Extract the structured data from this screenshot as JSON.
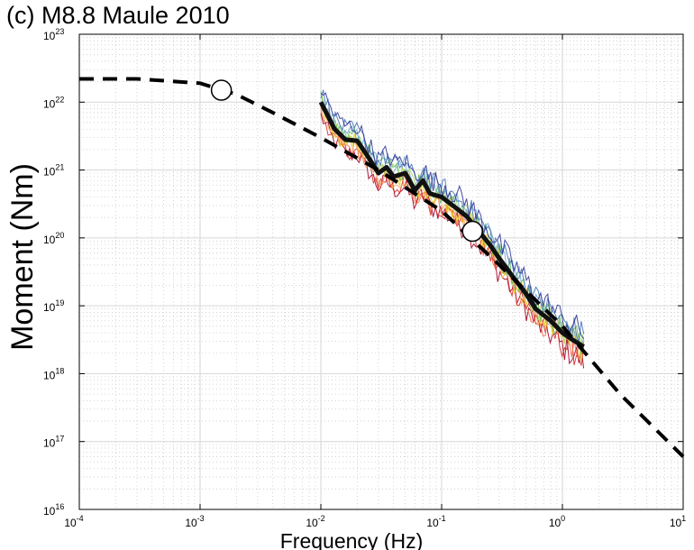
{
  "chart_data": {
    "type": "line",
    "title": "(c) M8.8 Maule 2010",
    "xlabel": "Frequency (Hz)",
    "ylabel": "Moment (Nm)",
    "x_scale": "log",
    "y_scale": "log",
    "xlim": [
      0.0001,
      10
    ],
    "ylim": [
      1e+16,
      1e+23
    ],
    "grid": "major and minor (dotted)",
    "x_ticks": [
      {
        "base": "10",
        "exp": "-4"
      },
      {
        "base": "10",
        "exp": "-3"
      },
      {
        "base": "10",
        "exp": "-2"
      },
      {
        "base": "10",
        "exp": "-1"
      },
      {
        "base": "10",
        "exp": "0"
      },
      {
        "base": "10",
        "exp": "1"
      }
    ],
    "y_ticks": [
      {
        "base": "10",
        "exp": "16"
      },
      {
        "base": "10",
        "exp": "17"
      },
      {
        "base": "10",
        "exp": "18"
      },
      {
        "base": "10",
        "exp": "19"
      },
      {
        "base": "10",
        "exp": "20"
      },
      {
        "base": "10",
        "exp": "21"
      },
      {
        "base": "10",
        "exp": "22"
      },
      {
        "base": "10",
        "exp": "23"
      }
    ],
    "model_fit": {
      "style": "dashed black",
      "x": [
        0.0001,
        0.0003,
        0.001,
        0.002,
        0.004,
        0.01,
        0.03,
        0.1,
        0.3,
        1,
        3,
        10
      ],
      "y": [
        2.2e+22,
        2.2e+22,
        1.9e+22,
        1.3e+22,
        7e+21,
        3e+21,
        1e+21,
        2.5e+20,
        4e+19,
        5e+18,
        5e+17,
        6e+16
      ]
    },
    "corner_frequencies": {
      "marker": "open circle",
      "x": [
        0.0015,
        0.18
      ],
      "y": [
        1.5e+22,
        1.25e+20
      ]
    },
    "average_spectrum": {
      "style": "thick black",
      "x": [
        0.01,
        0.013,
        0.016,
        0.02,
        0.025,
        0.03,
        0.035,
        0.04,
        0.05,
        0.06,
        0.07,
        0.08,
        0.1,
        0.13,
        0.16,
        0.2,
        0.25,
        0.3,
        0.4,
        0.5,
        0.6,
        0.8,
        1,
        1.2,
        1.5
      ],
      "y": [
        1e+22,
        4e+21,
        2.8e+21,
        2.7e+21,
        1.5e+21,
        9e+20,
        1.1e+21,
        8e+20,
        9e+20,
        5e+20,
        7e+20,
        4.5e+20,
        4e+20,
        2.8e+20,
        2.1e+20,
        1.3e+20,
        8e+19,
        5e+19,
        2.5e+19,
        1.5e+19,
        9e+18,
        6e+18,
        4e+18,
        3.2e+18,
        2.5e+18
      ]
    },
    "station_spectra": {
      "style": "thin colored lines (individual stations)",
      "colors": [
        "#a50026",
        "#d73027",
        "#f46d43",
        "#fdae61",
        "#e6d31c",
        "#a6d96a",
        "#66bd63",
        "#74add1",
        "#4575b4",
        "#313695"
      ],
      "x_range": [
        0.01,
        1.5
      ]
    }
  }
}
